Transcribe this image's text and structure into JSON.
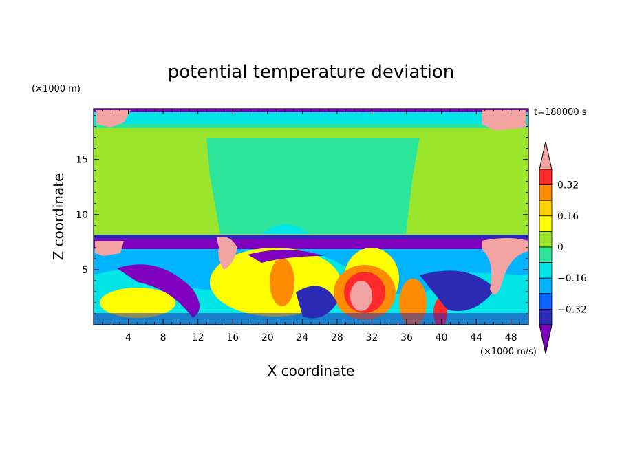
{
  "chart_data": {
    "type": "heatmap",
    "title": "potential temperature deviation",
    "xlabel": "X coordinate",
    "ylabel": "Z coordinate",
    "x_unit": "(×1000 m/s)",
    "y_unit": "(×1000 m)",
    "time_label": "t=180000 s",
    "xlim": [
      0,
      50
    ],
    "ylim": [
      0,
      19.6
    ],
    "x_ticks": [
      4,
      8,
      12,
      16,
      20,
      24,
      28,
      32,
      36,
      40,
      44,
      48
    ],
    "y_ticks": [
      5,
      10,
      15
    ],
    "colorbar": {
      "tick_labels": [
        "0.32",
        "0.16",
        "0",
        "−0.16",
        "−0.32"
      ],
      "tick_values": [
        0.32,
        0.16,
        0,
        -0.16,
        -0.32
      ],
      "levels": [
        -0.4,
        -0.32,
        -0.24,
        -0.16,
        -0.08,
        0,
        0.08,
        0.16,
        0.24,
        0.32,
        0.4
      ],
      "colors": [
        "#7f00bf",
        "#2a2ab5",
        "#0a64ff",
        "#00b4ff",
        "#00e6e6",
        "#2de59a",
        "#9be62d",
        "#ffff00",
        "#ffd200",
        "#ff8c00",
        "#ff2a2a",
        "#f4a3a3"
      ]
    }
  }
}
